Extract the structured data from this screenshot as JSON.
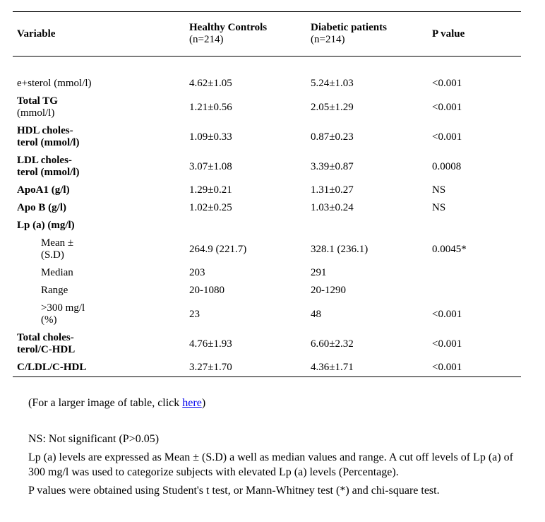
{
  "header": {
    "variable": "Variable",
    "healthy": "Healthy Controls",
    "healthy_n": "(n=214)",
    "diabetic": "Diabetic patients",
    "diabetic_n": "(n=214)",
    "pvalue": "P value"
  },
  "rows": {
    "esterol": {
      "var": "e+sterol (mmol/l)",
      "hc": "4.62±1.05",
      "dp": "5.24±1.03",
      "p": "<0.001"
    },
    "total_tg": {
      "var": "Total TG",
      "var2": "(mmol/l)",
      "hc": "1.21±0.56",
      "dp": "2.05±1.29",
      "p": "<0.001"
    },
    "hdl": {
      "var": "HDL choles-",
      "var2": "terol (mmol/l)",
      "hc": "1.09±0.33",
      "dp": "0.87±0.23",
      "p": "<0.001"
    },
    "ldl": {
      "var": "LDL choles-",
      "var2": "terol (mmol/l)",
      "hc": "3.07±1.08",
      "dp": "3.39±0.87",
      "p": "0.0008"
    },
    "apoa1": {
      "var": "ApoA1 (g/l)",
      "hc": "1.29±0.21",
      "dp": "1.31±0.27",
      "p": "NS"
    },
    "apob": {
      "var": "Apo B (g/l)",
      "hc": "1.02±0.25",
      "dp": "1.03±0.24",
      "p": "NS"
    },
    "lpa": {
      "var": "Lp (a) (mg/l)"
    },
    "lpa_mean": {
      "sub": "Mean ±",
      "sub2": "(S.D)",
      "hc": "264.9 (221.7)",
      "dp": "328.1 (236.1)",
      "p": "0.0045*"
    },
    "lpa_median": {
      "sub": "Median",
      "hc": "203",
      "dp": "291",
      "p": ""
    },
    "lpa_range": {
      "sub": "Range",
      "hc": "20-1080",
      "dp": "20-1290",
      "p": ""
    },
    "lpa_gt300": {
      "sub": ">300 mg/l",
      "sub2": "(%)",
      "hc": "23",
      "dp": "48",
      "p": "<0.001"
    },
    "tc_chdl": {
      "var": "Total choles-",
      "var2": "terol/C-HDL",
      "hc": "4.76±1.93",
      "dp": "6.60±2.32",
      "p": "<0.001"
    },
    "cldl_chdl": {
      "var": "C/LDL/C-HDL",
      "hc": "3.27±1.70",
      "dp": "4.36±1.71",
      "p": "<0.001"
    }
  },
  "notes": {
    "larger_pre": "(For a larger image of table, click ",
    "larger_link": "here",
    "larger_post": ")",
    "ns": "NS: Not significant (P>0.05)",
    "lpa_expr": "Lp (a) levels are expressed as Mean ± (S.D) a well as median values and range. A cut off levels of Lp (a) of 300 mg/l was used to categorize subjects with elevated Lp (a) levels (Percentage).",
    "pvals": "P values were obtained using Student's t test, or Mann-Whitney test (*) and chi-square test."
  }
}
